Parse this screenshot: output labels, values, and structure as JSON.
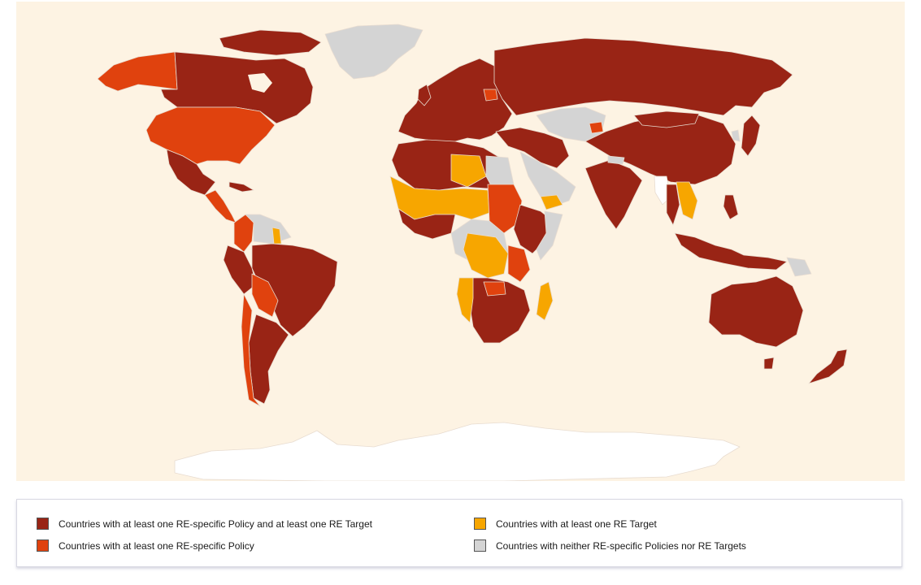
{
  "colors": {
    "background": "#fdf3e3",
    "policy_and_target": "#992415",
    "policy_only": "#e0420e",
    "target_only": "#f7a600",
    "neither": "#d4d4d4",
    "no_data": "#ffffff"
  },
  "legend": {
    "items": [
      {
        "label": "Countries with at least one RE-specific Policy and at least one RE Target",
        "color": "#992415"
      },
      {
        "label": "Countries with at least one RE-specific Policy",
        "color": "#e0420e"
      },
      {
        "label": "Countries with at least one RE Target",
        "color": "#f7a600"
      },
      {
        "label": "Countries with neither RE-specific Policies nor RE Targets",
        "color": "#d4d4d4"
      }
    ]
  }
}
